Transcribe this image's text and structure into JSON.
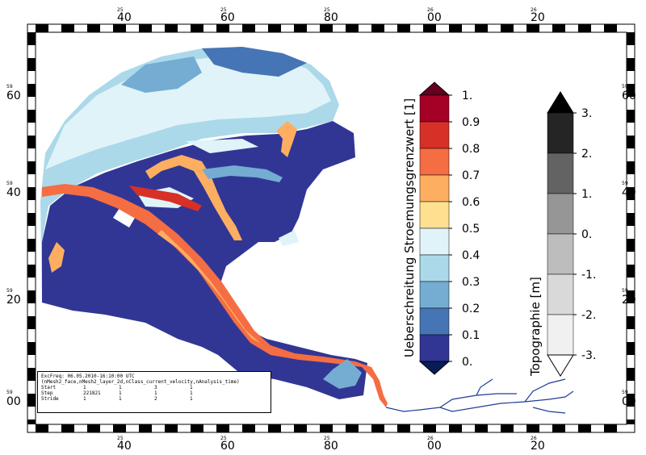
{
  "map": {
    "top_labels": [
      {
        "deg": "25",
        "val": "40"
      },
      {
        "deg": "25",
        "val": "60"
      },
      {
        "deg": "25",
        "val": "80"
      },
      {
        "deg": "26",
        "val": "00"
      },
      {
        "deg": "26",
        "val": "20"
      }
    ],
    "bottom_labels": [
      {
        "deg": "25",
        "val": "40"
      },
      {
        "deg": "25",
        "val": "60"
      },
      {
        "deg": "25",
        "val": "80"
      },
      {
        "deg": "26",
        "val": "00"
      },
      {
        "deg": "26",
        "val": "20"
      }
    ],
    "left_labels": [
      {
        "deg": "59",
        "val": "60"
      },
      {
        "deg": "59",
        "val": "40"
      },
      {
        "deg": "59",
        "val": "20"
      },
      {
        "deg": "59",
        "val": "00"
      }
    ],
    "right_labels": [
      {
        "deg": "59",
        "val": "60"
      },
      {
        "deg": "59",
        "val": "40"
      },
      {
        "deg": "59",
        "val": "20"
      },
      {
        "deg": "59",
        "val": "00"
      }
    ]
  },
  "colorbar_main": {
    "title": "Ueberschreitung Stroemungsgrenzwert [1]",
    "ticks": [
      "1.",
      "0.9",
      "0.8",
      "0.7",
      "0.6",
      "0.5",
      "0.4",
      "0.3",
      "0.2",
      "0.1",
      "0."
    ],
    "colors": [
      "#a50026",
      "#d73027",
      "#f46d43",
      "#fdae61",
      "#fee090",
      "#e0f3f8",
      "#abd9e9",
      "#74add1",
      "#4575b4",
      "#313695"
    ],
    "over_color": "#67001f",
    "under_color": "#081d58"
  },
  "colorbar_topo": {
    "title": "Topographie [m]",
    "ticks": [
      "3.",
      "2.",
      "1.",
      "0.",
      "-1.",
      "-2.",
      "-3."
    ],
    "colors": [
      "#252525",
      "#636363",
      "#969696",
      "#bdbdbd",
      "#d9d9d9",
      "#f0f0f0"
    ],
    "over_color": "#000000",
    "under_color": "#ffffff"
  },
  "info": {
    "line1": "ExcFreq: 06.05.2010-16:10:00 UTC",
    "line2": "(nMesh2_face,nMesh2_layer_2d,nClass_current_velocity,nAnalysis_time)",
    "rows": [
      {
        "label": "Start",
        "v": [
          "1",
          "1",
          "3",
          "1"
        ]
      },
      {
        "label": "Step",
        "v": [
          "221821",
          "1",
          "1",
          "1"
        ]
      },
      {
        "label": "Stride",
        "v": [
          "1",
          "1",
          "2",
          "1"
        ]
      }
    ]
  }
}
